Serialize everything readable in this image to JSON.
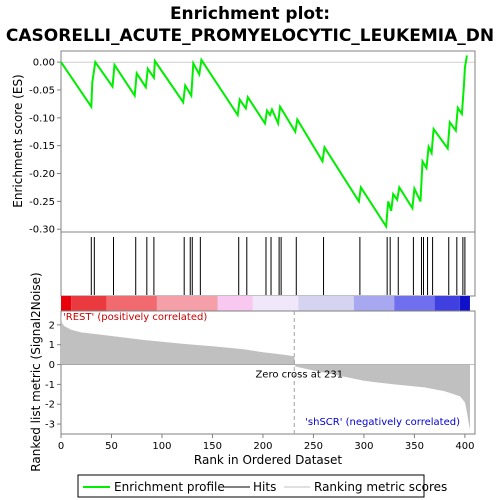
{
  "chart_data": {
    "type": "line",
    "title_line1": "Enrichment plot:",
    "title_line2": "CASORELLI_ACUTE_PROMYELOCYTIC_LEUKEMIA_DN",
    "colors": {
      "es_line": "#00ee00",
      "hits": "#000000",
      "metric_fill": "#c0c0c0",
      "positive_text": "#cc0000",
      "negative_text": "#0000cc"
    },
    "es_panel": {
      "ylabel": "Enrichment score (ES)",
      "ylim": [
        -0.305,
        0.02
      ],
      "yticks": [
        0.0,
        -0.05,
        -0.1,
        -0.15,
        -0.2,
        -0.25,
        -0.3
      ],
      "ytick_labels": [
        "0.00",
        "-0.05",
        "-0.10",
        "-0.15",
        "-0.20",
        "-0.25",
        "-0.30"
      ],
      "x": [
        0,
        30,
        31,
        34,
        51,
        53,
        73,
        75,
        84,
        86,
        92,
        93,
        121,
        123,
        129,
        131,
        137,
        139,
        175,
        177,
        183,
        185,
        202,
        204,
        207,
        209,
        215,
        217,
        232,
        234,
        259,
        261,
        295,
        297,
        322,
        324,
        327,
        329,
        333,
        335,
        348,
        350,
        356,
        358,
        362,
        364,
        367,
        369,
        383,
        385,
        391,
        393,
        397,
        399,
        400,
        402
      ],
      "y": [
        0.0,
        -0.08,
        -0.036,
        0.0,
        -0.044,
        -0.005,
        -0.06,
        -0.02,
        -0.045,
        -0.012,
        -0.028,
        0.002,
        -0.072,
        -0.042,
        -0.06,
        -0.002,
        -0.022,
        0.004,
        -0.095,
        -0.067,
        -0.083,
        -0.063,
        -0.11,
        -0.087,
        -0.095,
        -0.085,
        -0.11,
        -0.08,
        -0.125,
        -0.103,
        -0.178,
        -0.153,
        -0.25,
        -0.225,
        -0.295,
        -0.25,
        -0.267,
        -0.237,
        -0.247,
        -0.225,
        -0.262,
        -0.227,
        -0.25,
        -0.178,
        -0.19,
        -0.152,
        -0.163,
        -0.12,
        -0.155,
        -0.108,
        -0.123,
        -0.082,
        -0.093,
        -0.043,
        -0.01,
        0.012
      ]
    },
    "hits": [
      30,
      33,
      52,
      74,
      85,
      92,
      122,
      128,
      130,
      138,
      176,
      184,
      203,
      208,
      216,
      218,
      233,
      260,
      296,
      323,
      326,
      334,
      349,
      357,
      359,
      363,
      368,
      384,
      392,
      398,
      400
    ],
    "heatmap_bar": {
      "stops": [
        "#e8000a",
        "#ea3a3f",
        "#f06a70",
        "#f5a0a8",
        "#f8c8f0",
        "#f0e8fa",
        "#d4d4f0",
        "#a8a8f0",
        "#7070ee",
        "#4040e0",
        "#1010c8"
      ],
      "boundaries": [
        0,
        10,
        45,
        95,
        155,
        190,
        235,
        290,
        330,
        370,
        395,
        405
      ]
    },
    "metric_panel": {
      "ylabel": "Ranked list metric (Signal2Noise)",
      "ylim": [
        -3.5,
        2.7
      ],
      "yticks": [
        2,
        1,
        0,
        -1,
        -2,
        -3
      ],
      "ytick_labels": [
        "2",
        "1",
        "0",
        "-1",
        "-2",
        "-3"
      ],
      "profile_x": [
        0,
        1,
        3,
        10,
        20,
        40,
        60,
        80,
        100,
        120,
        150,
        180,
        200,
        220,
        231,
        232,
        250,
        270,
        300,
        330,
        360,
        380,
        395,
        400,
        402,
        404,
        405
      ],
      "profile_y": [
        2.6,
        2.1,
        1.95,
        1.75,
        1.62,
        1.5,
        1.38,
        1.25,
        1.15,
        1.05,
        0.92,
        0.78,
        0.62,
        0.5,
        0.42,
        -0.1,
        -0.3,
        -0.5,
        -0.82,
        -1.0,
        -1.15,
        -1.35,
        -1.6,
        -1.9,
        -2.4,
        -3.0,
        -3.3
      ],
      "zero_cross": 231,
      "zero_cross_label": "Zero cross at 231",
      "positive_label": "'REST' (positively correlated)",
      "negative_label": "'shSCR' (negatively correlated)"
    },
    "x_axis": {
      "xlabel": "Rank in Ordered Dataset",
      "xlim": [
        0,
        410
      ],
      "xticks": [
        0,
        50,
        100,
        150,
        200,
        250,
        300,
        350,
        400
      ],
      "xtick_labels": [
        "0",
        "50",
        "100",
        "150",
        "200",
        "250",
        "300",
        "350",
        "400"
      ]
    },
    "legend": {
      "placement": "bottom",
      "items": [
        {
          "label": "Enrichment profile",
          "kind": "line",
          "color": "#00ee00"
        },
        {
          "label": "Hits",
          "kind": "line",
          "color": "#000000"
        },
        {
          "label": "Ranking metric scores",
          "kind": "line",
          "color": "#c0c0c0"
        }
      ]
    }
  }
}
